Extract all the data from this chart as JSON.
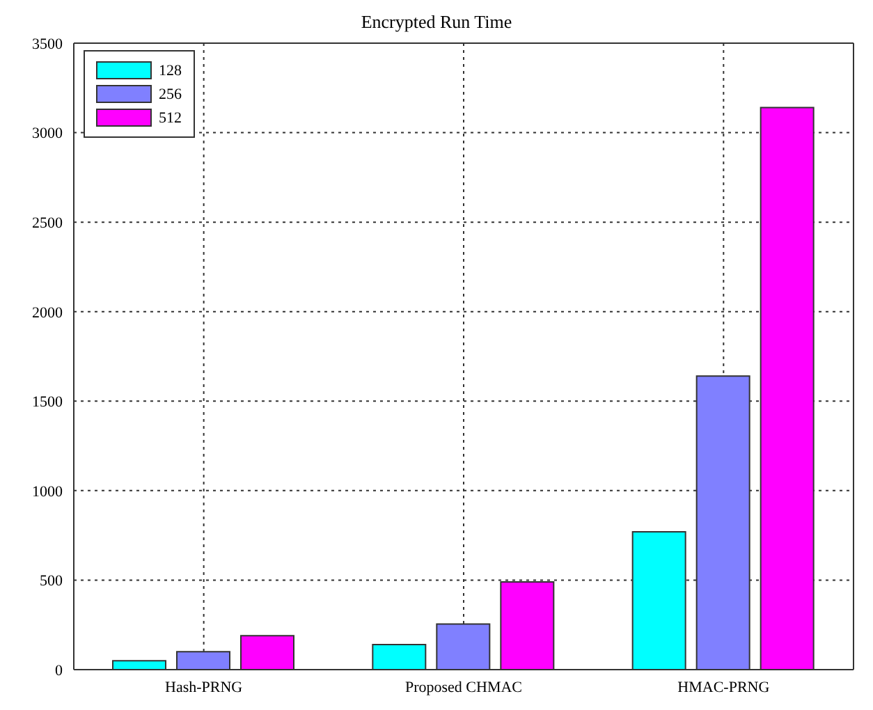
{
  "chart_data": {
    "type": "bar",
    "title": "Encrypted Run Time",
    "categories": [
      "Hash-PRNG",
      "Proposed CHMAC",
      "HMAC-PRNG"
    ],
    "series": [
      {
        "name": "128",
        "color": "#00ffff",
        "values": [
          50,
          140,
          770
        ]
      },
      {
        "name": "256",
        "color": "#8080ff",
        "values": [
          100,
          255,
          1640
        ]
      },
      {
        "name": "512",
        "color": "#ff00ff",
        "values": [
          190,
          490,
          3140
        ]
      }
    ],
    "ylim": [
      0,
      3500
    ],
    "yticks": [
      0,
      500,
      1000,
      1500,
      2000,
      2500,
      3000,
      3500
    ],
    "grid": true,
    "legend": "top left"
  }
}
